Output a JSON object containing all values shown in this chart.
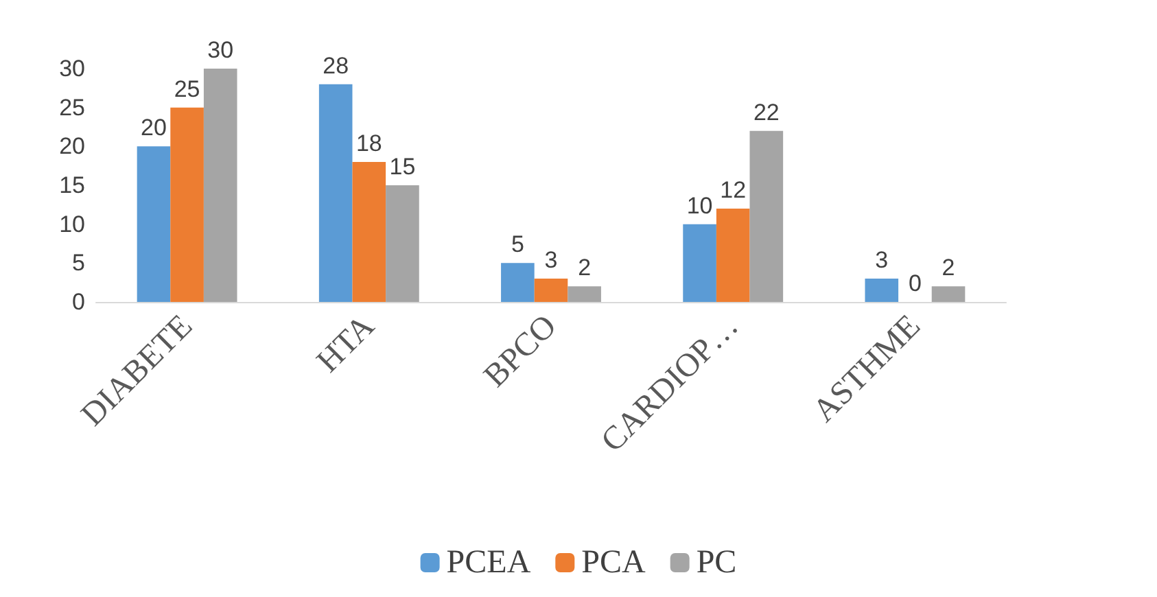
{
  "chart_data": {
    "type": "bar",
    "categories": [
      "DIABETE",
      "HTA",
      "BPCO",
      "CARDIOP…",
      "ASTHME"
    ],
    "series": [
      {
        "name": "PCEA",
        "color": "#5b9bd5",
        "values": [
          20,
          28,
          5,
          10,
          3
        ]
      },
      {
        "name": "PCA",
        "color": "#ed7d31",
        "values": [
          25,
          18,
          3,
          12,
          0
        ]
      },
      {
        "name": "PC",
        "color": "#a5a5a5",
        "values": [
          30,
          15,
          2,
          22,
          2
        ]
      }
    ],
    "ylim": [
      0,
      30
    ],
    "yticks": [
      0,
      5,
      10,
      15,
      20,
      25,
      30
    ],
    "data_labels": true,
    "legend": "bottom",
    "grid": false
  }
}
